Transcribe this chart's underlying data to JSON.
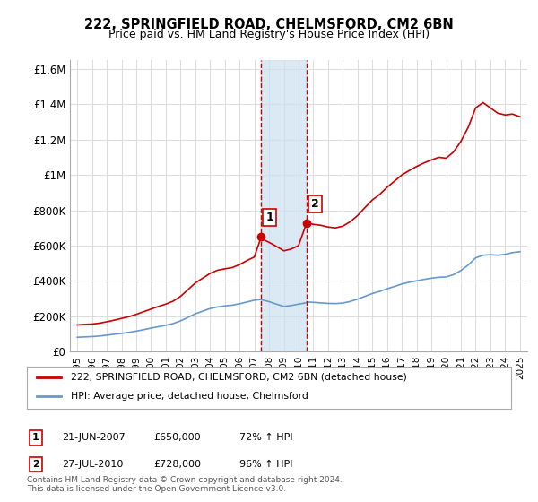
{
  "title1": "222, SPRINGFIELD ROAD, CHELMSFORD, CM2 6BN",
  "title2": "Price paid vs. HM Land Registry's House Price Index (HPI)",
  "ylabel_ticks": [
    "£0",
    "£200K",
    "£400K",
    "£600K",
    "£800K",
    "£1M",
    "£1.2M",
    "£1.4M",
    "£1.6M"
  ],
  "ytick_values": [
    0,
    200000,
    400000,
    600000,
    800000,
    1000000,
    1200000,
    1400000,
    1600000
  ],
  "ylim": [
    0,
    1650000
  ],
  "sale1_x": 2007.47,
  "sale1_y": 650000,
  "sale2_x": 2010.57,
  "sale2_y": 728000,
  "sale1_label": "1",
  "sale2_label": "2",
  "vline1_x": 2007.47,
  "vline2_x": 2010.57,
  "shade_x1": 2007.47,
  "shade_x2": 2010.57,
  "red_line_color": "#cc0000",
  "blue_line_color": "#6699cc",
  "shade_color": "#cce0f0",
  "vline_color": "#cc0000",
  "legend_label_red": "222, SPRINGFIELD ROAD, CHELMSFORD, CM2 6BN (detached house)",
  "legend_label_blue": "HPI: Average price, detached house, Chelmsford",
  "table_rows": [
    {
      "num": "1",
      "date": "21-JUN-2007",
      "price": "£650,000",
      "hpi": "72% ↑ HPI"
    },
    {
      "num": "2",
      "date": "27-JUL-2010",
      "price": "£728,000",
      "hpi": "96% ↑ HPI"
    }
  ],
  "footer": "Contains HM Land Registry data © Crown copyright and database right 2024.\nThis data is licensed under the Open Government Licence v3.0.",
  "bg_color": "#ffffff",
  "grid_color": "#dddddd",
  "xlim_start": 1994.5,
  "xlim_end": 2025.5
}
